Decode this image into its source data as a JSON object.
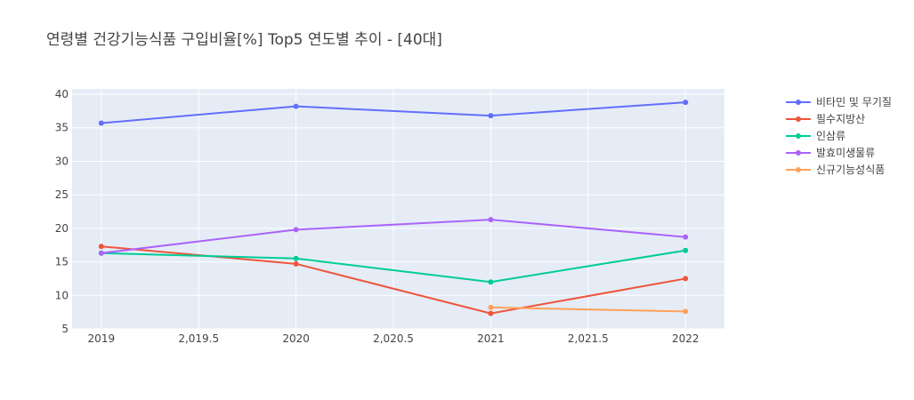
{
  "chart_data": {
    "type": "line",
    "title": "연령별 건강기능식품 구입비율[%] Top5 연도별 추이 - [40대]",
    "xlabel": "",
    "ylabel": "",
    "xlim": [
      2018.85,
      2022.2
    ],
    "ylim": [
      5,
      40.8
    ],
    "x_ticks": [
      2019,
      2019.5,
      2020,
      2020.5,
      2021,
      2021.5,
      2022
    ],
    "x_tick_labels": [
      "2019",
      "2,019.5",
      "2020",
      "2,020.5",
      "2021",
      "2,021.5",
      "2022"
    ],
    "y_ticks": [
      5,
      10,
      15,
      20,
      25,
      30,
      35,
      40
    ],
    "y_tick_labels": [
      "5",
      "10",
      "15",
      "20",
      "25",
      "30",
      "35",
      "40"
    ],
    "grid": true,
    "legend_position": "top-right",
    "series": [
      {
        "name": "비타민 및 무기질",
        "color": "#636efa",
        "x": [
          2019,
          2020,
          2021,
          2022
        ],
        "values": [
          35.7,
          38.2,
          36.8,
          38.8
        ]
      },
      {
        "name": "필수지방산",
        "color": "#ef553b",
        "x": [
          2019,
          2020,
          2021,
          2022
        ],
        "values": [
          17.3,
          14.7,
          7.3,
          12.5
        ]
      },
      {
        "name": "인삼류",
        "color": "#00cc96",
        "x": [
          2019,
          2020,
          2021,
          2022
        ],
        "values": [
          16.3,
          15.5,
          12.0,
          16.7
        ]
      },
      {
        "name": "발효미생물류",
        "color": "#ab63fa",
        "x": [
          2019,
          2020,
          2021,
          2022
        ],
        "values": [
          16.3,
          19.8,
          21.3,
          18.7
        ]
      },
      {
        "name": "신규기능성식품",
        "color": "#ffa15a",
        "x": [
          2021,
          2022
        ],
        "values": [
          8.2,
          7.6
        ]
      }
    ]
  }
}
